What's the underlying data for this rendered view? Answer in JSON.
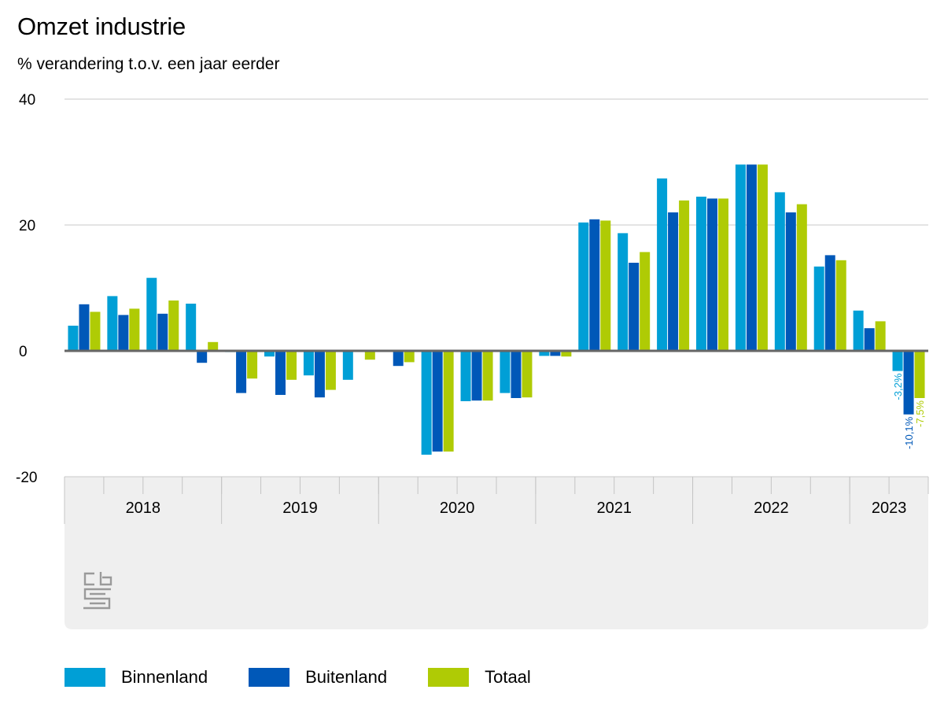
{
  "colors": {
    "binnenland": "#009fd6",
    "buitenland": "#0058b8",
    "totaal": "#afcb05",
    "grid": "#c8c8c8",
    "axis_band": "#efefef",
    "zero_line": "#666666"
  },
  "logo": {
    "icon": "cbs-logo-icon"
  },
  "chart_data": {
    "type": "bar",
    "title": "Omzet industrie",
    "subtitle": "% verandering t.o.v. een jaar eerder",
    "xlabel": "",
    "ylabel": "",
    "ylim": [
      -20,
      40
    ],
    "y_ticks": [
      40,
      20,
      0,
      -20
    ],
    "grid": true,
    "legend_position": "bottom",
    "x_groups": [
      {
        "label": "2018",
        "quarters": 4
      },
      {
        "label": "2019",
        "quarters": 4
      },
      {
        "label": "2020",
        "quarters": 4
      },
      {
        "label": "2021",
        "quarters": 4
      },
      {
        "label": "2022",
        "quarters": 4
      },
      {
        "label": "2023",
        "quarters": 2
      }
    ],
    "categories": [
      "2018 Q1",
      "2018 Q2",
      "2018 Q3",
      "2018 Q4",
      "2019 Q1",
      "2019 Q2",
      "2019 Q3",
      "2019 Q4",
      "2020 Q1",
      "2020 Q2",
      "2020 Q3",
      "2020 Q4",
      "2021 Q1",
      "2021 Q2",
      "2021 Q3",
      "2021 Q4",
      "2022 Q1",
      "2022 Q2",
      "2022 Q3",
      "2022 Q4",
      "2023 Q1",
      "2023 Q2"
    ],
    "series": [
      {
        "name": "Binnenland",
        "color_key": "binnenland",
        "values": [
          4.0,
          8.7,
          11.6,
          7.5,
          -0.2,
          -0.9,
          -3.9,
          -4.6,
          -0.1,
          -16.5,
          -8.0,
          -6.7,
          -0.8,
          20.4,
          18.7,
          27.4,
          24.5,
          29.6,
          25.2,
          13.4,
          6.4,
          -3.2
        ]
      },
      {
        "name": "Buitenland",
        "color_key": "buitenland",
        "values": [
          7.4,
          5.7,
          5.9,
          -1.9,
          -6.7,
          -7.0,
          -7.4,
          0.0,
          -2.4,
          -16.0,
          -7.9,
          -7.5,
          -0.8,
          20.9,
          14.0,
          22.0,
          24.2,
          29.6,
          22.0,
          15.2,
          3.6,
          -10.1
        ]
      },
      {
        "name": "Totaal",
        "color_key": "totaal",
        "values": [
          6.2,
          6.7,
          8.0,
          1.4,
          -4.4,
          -4.6,
          -6.2,
          -1.4,
          -1.8,
          -16.0,
          -7.9,
          -7.4,
          -0.9,
          20.7,
          15.7,
          23.9,
          24.2,
          29.6,
          23.3,
          14.4,
          4.7,
          -7.5
        ]
      }
    ],
    "data_labels": [
      {
        "category": "2023 Q2",
        "series": "Binnenland",
        "text": "-3,2%"
      },
      {
        "category": "2023 Q2",
        "series": "Buitenland",
        "text": "-10,1%"
      },
      {
        "category": "2023 Q2",
        "series": "Totaal",
        "text": "-7,5%"
      }
    ]
  }
}
